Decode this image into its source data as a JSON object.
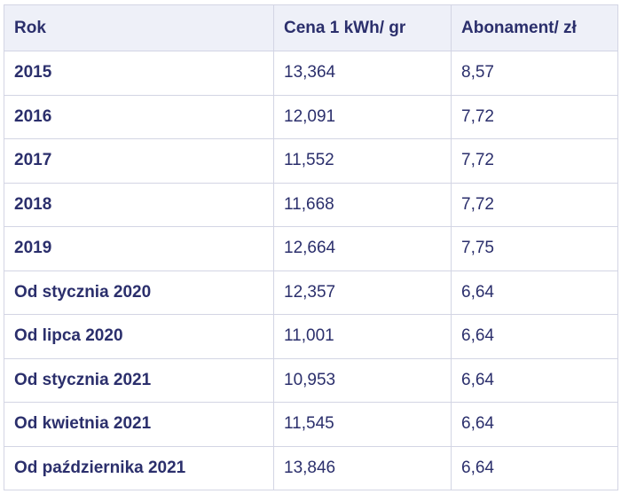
{
  "table": {
    "header": [
      "Rok",
      "Cena 1 kWh/ gr",
      "Abonament/ zł"
    ],
    "rows": [
      [
        "2015",
        "13,364",
        "8,57"
      ],
      [
        "2016",
        "12,091",
        "7,72"
      ],
      [
        "2017",
        "11,552",
        "7,72"
      ],
      [
        "2018",
        "11,668",
        "7,72"
      ],
      [
        "2019",
        "12,664",
        "7,75"
      ],
      [
        "Od stycznia 2020",
        "12,357",
        "6,64"
      ],
      [
        "Od lipca 2020",
        "11,001",
        "6,64"
      ],
      [
        "Od stycznia 2021",
        "10,953",
        "6,64"
      ],
      [
        "Od kwietnia 2021",
        "11,545",
        "6,64"
      ],
      [
        "Od października 2021",
        "13,846",
        "6,64"
      ]
    ]
  }
}
